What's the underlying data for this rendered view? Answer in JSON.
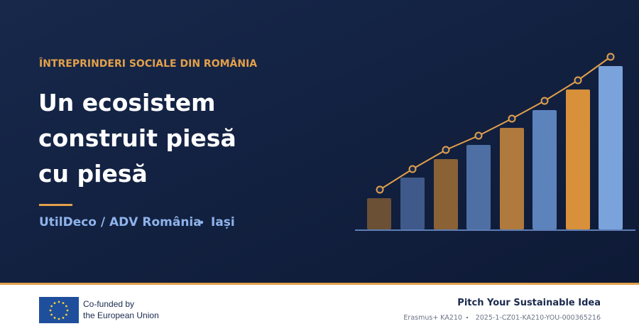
{
  "header": {
    "kicker": "ÎNTREPRINDERI SOCIALE DIN ROMÂNIA",
    "title_lines": [
      "Un ecosistem",
      "construit piesă",
      "cu piesă"
    ],
    "byline": "UtilDeco / ADV România",
    "location": "Iași"
  },
  "footer": {
    "eu_lines": [
      "Co-funded by",
      "the European Union"
    ],
    "project": "Pitch Your Sustainable Idea",
    "program": "Erasmus+ KA210",
    "grant_id": "2025-1-CZ01-KA210-YOU-000365216"
  }
}
